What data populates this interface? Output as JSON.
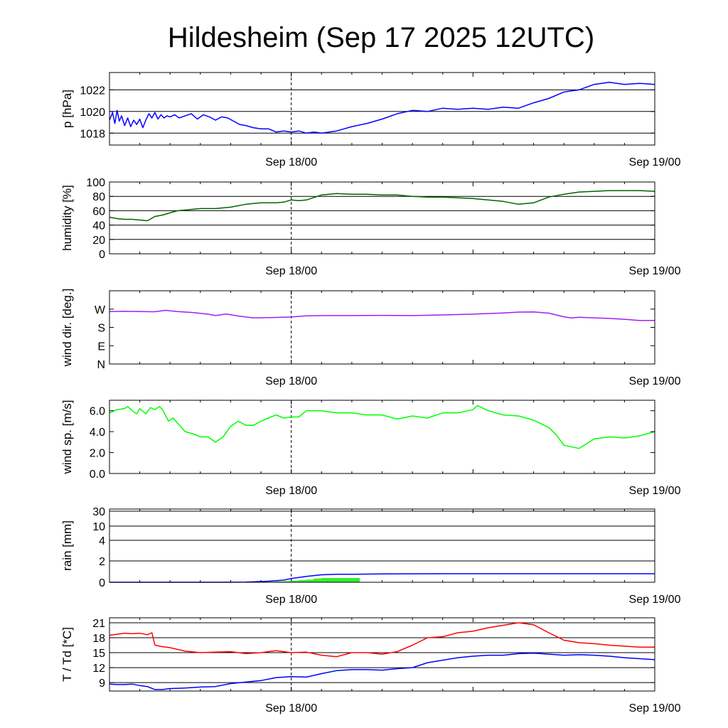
{
  "title": "Hildesheim (Sep 17 2025 12UTC)",
  "colors": {
    "pressure": "#0000ff",
    "humidity": "#006400",
    "wind_dir": "#a020f0",
    "wind_speed": "#00ff00",
    "rain_bar": "#33ee33",
    "rain_line": "#0000ff",
    "temperature": "#ff0000",
    "dewpoint": "#0000ff"
  },
  "chart_data": [
    {
      "type": "line",
      "ylabel": "p [hPa]",
      "x_ticks": [
        {
          "x": 12,
          "label": "Sep 18/00"
        },
        {
          "x": 36,
          "label": "Sep 19/00"
        }
      ],
      "x_range": [
        0,
        36
      ],
      "ylim": [
        1016.9,
        1023.6
      ],
      "y_ticks": [
        1018,
        1020,
        1022
      ],
      "gridlines": [
        1018,
        1020,
        1022
      ],
      "series": [
        {
          "name": "",
          "color_key": "pressure",
          "x": [
            0,
            0.2,
            0.35,
            0.5,
            0.65,
            0.8,
            1.0,
            1.2,
            1.4,
            1.6,
            1.8,
            2.0,
            2.2,
            2.4,
            2.6,
            2.8,
            3.0,
            3.2,
            3.4,
            3.6,
            3.8,
            4.0,
            4.3,
            4.6,
            5.0,
            5.4,
            5.8,
            6.2,
            6.6,
            7.0,
            7.4,
            7.8,
            8.2,
            8.6,
            9.0,
            9.5,
            10.0,
            10.5,
            11.0,
            11.5,
            12.0,
            12.5,
            13.0,
            13.5,
            14.0,
            15.0,
            16.0,
            17.0,
            18.0,
            19.0,
            20.0,
            21.0,
            22.0,
            23.0,
            24.0,
            25.0,
            26.0,
            27.0,
            28.0,
            29.0,
            30.0,
            31.0,
            32.0,
            33.0,
            34.0,
            35.0,
            36.0
          ],
          "values": [
            1019.2,
            1019.9,
            1018.9,
            1020.1,
            1019.1,
            1019.6,
            1018.7,
            1019.4,
            1018.6,
            1019.2,
            1018.8,
            1019.3,
            1018.5,
            1019.2,
            1019.8,
            1019.4,
            1019.9,
            1019.3,
            1019.7,
            1019.4,
            1019.6,
            1019.5,
            1019.7,
            1019.4,
            1019.6,
            1019.8,
            1019.3,
            1019.7,
            1019.5,
            1019.2,
            1019.5,
            1019.4,
            1019.1,
            1018.8,
            1018.7,
            1018.5,
            1018.4,
            1018.4,
            1018.1,
            1018.2,
            1018.1,
            1018.2,
            1018.0,
            1018.1,
            1018.0,
            1018.2,
            1018.6,
            1018.9,
            1019.3,
            1019.8,
            1020.1,
            1020.0,
            1020.3,
            1020.2,
            1020.3,
            1020.2,
            1020.4,
            1020.3,
            1020.8,
            1021.2,
            1021.8,
            1022.0,
            1022.5,
            1022.7,
            1022.5,
            1022.6,
            1022.5
          ]
        }
      ]
    },
    {
      "type": "line",
      "ylabel": "humidity [%]",
      "x_ticks": [
        {
          "x": 12,
          "label": "Sep 18/00"
        },
        {
          "x": 36,
          "label": "Sep 19/00"
        }
      ],
      "x_range": [
        0,
        36
      ],
      "ylim": [
        0,
        100
      ],
      "y_ticks": [
        0,
        20,
        40,
        60,
        80,
        100
      ],
      "gridlines": [
        20,
        40,
        60,
        80
      ],
      "series": [
        {
          "name": "",
          "color_key": "humidity",
          "x": [
            0,
            0.5,
            1.0,
            1.5,
            2.0,
            2.5,
            3.0,
            3.5,
            4.0,
            4.5,
            5.0,
            6.0,
            7.0,
            8.0,
            9.0,
            10.0,
            11.0,
            11.5,
            12.0,
            12.5,
            13.0,
            14.0,
            15.0,
            16.0,
            17.0,
            18.0,
            19.0,
            20.0,
            21.0,
            22.0,
            23.0,
            24.0,
            25.0,
            26.0,
            27.0,
            28.0,
            29.0,
            30.0,
            31.0,
            32.0,
            33.0,
            34.0,
            35.0,
            36.0
          ],
          "values": [
            51,
            49,
            48,
            48,
            47,
            46,
            52,
            54,
            57,
            60,
            61,
            63,
            63,
            65,
            69,
            71,
            71,
            72,
            75,
            74,
            75,
            82,
            84,
            83,
            83,
            82,
            82,
            80,
            79,
            79,
            78,
            77,
            75,
            73,
            69,
            71,
            79,
            83,
            86,
            87,
            88,
            88,
            88,
            87
          ]
        }
      ]
    },
    {
      "type": "line",
      "ylabel": "wind dir. [deg.]",
      "x_ticks": [
        {
          "x": 12,
          "label": "Sep 18/00"
        },
        {
          "x": 36,
          "label": "Sep 19/00"
        }
      ],
      "x_range": [
        0,
        36
      ],
      "ylim": [
        0,
        360
      ],
      "y_ticks": [
        {
          "value": 0,
          "label": "N"
        },
        {
          "value": 90,
          "label": "E"
        },
        {
          "value": 180,
          "label": "S"
        },
        {
          "value": 270,
          "label": "W"
        }
      ],
      "series": [
        {
          "name": "",
          "color_key": "wind_dir",
          "x": [
            0,
            1.0,
            2.0,
            3.0,
            3.7,
            4.5,
            5.5,
            6.5,
            7.0,
            7.7,
            8.5,
            9.5,
            10.5,
            12.0,
            13.0,
            14.0,
            16.0,
            18.0,
            20.0,
            22.0,
            24.0,
            25.0,
            26.0,
            27.0,
            28.0,
            29.0,
            30.0,
            30.5,
            31.0,
            32.0,
            33.0,
            34.0,
            35.0,
            36.0
          ],
          "values": [
            258,
            259,
            258,
            257,
            264,
            258,
            253,
            245,
            238,
            246,
            236,
            227,
            228,
            231,
            237,
            238,
            238,
            239,
            238,
            241,
            245,
            248,
            251,
            255,
            256,
            250,
            232,
            226,
            230,
            227,
            224,
            220,
            214,
            214
          ]
        }
      ]
    },
    {
      "type": "line",
      "ylabel": "wind sp. [m/s]",
      "x_ticks": [
        {
          "x": 12,
          "label": "Sep 18/00"
        },
        {
          "x": 36,
          "label": "Sep 19/00"
        }
      ],
      "x_range": [
        0,
        36
      ],
      "ylim": [
        0,
        7
      ],
      "y_ticks": [
        0,
        2,
        4,
        6
      ],
      "y_tick_labels": [
        "0.0",
        "2.0",
        "4.0",
        "6.0"
      ],
      "series": [
        {
          "name": "",
          "color_key": "wind_speed",
          "x": [
            0,
            0.5,
            1.0,
            1.2,
            1.5,
            1.8,
            2.0,
            2.4,
            2.7,
            3.0,
            3.3,
            3.5,
            3.9,
            4.2,
            4.5,
            5.0,
            5.5,
            6.0,
            6.5,
            7.0,
            7.5,
            8.0,
            8.5,
            9.0,
            9.5,
            10.0,
            10.5,
            11.0,
            11.5,
            12.0,
            12.5,
            13.0,
            14.0,
            15.0,
            16.0,
            17.0,
            18.0,
            19.0,
            20.0,
            21.0,
            22.0,
            23.0,
            24.0,
            24.3,
            25.0,
            26.0,
            27.0,
            28.0,
            29.0,
            29.5,
            30.0,
            31.0,
            32.0,
            33.0,
            34.0,
            35.0,
            36.0
          ],
          "values": [
            5.8,
            6.1,
            6.2,
            6.4,
            6.0,
            5.7,
            6.2,
            5.7,
            6.3,
            6.1,
            6.4,
            6.1,
            5.0,
            5.3,
            4.8,
            4.0,
            3.8,
            3.5,
            3.5,
            3.0,
            3.5,
            4.5,
            5.0,
            4.6,
            4.6,
            5.0,
            5.3,
            5.6,
            5.3,
            5.4,
            5.4,
            6.0,
            6.0,
            5.8,
            5.8,
            5.6,
            5.6,
            5.2,
            5.5,
            5.3,
            5.8,
            5.8,
            6.1,
            6.5,
            6.0,
            5.6,
            5.5,
            5.1,
            4.4,
            3.7,
            2.7,
            2.4,
            3.3,
            3.5,
            3.4,
            3.6,
            4.0
          ]
        }
      ]
    },
    {
      "type": "bar+line",
      "ylabel": "rain [mm]",
      "x_ticks": [
        {
          "x": 12,
          "label": "Sep 18/00"
        },
        {
          "x": 36,
          "label": "Sep 19/00"
        }
      ],
      "x_range": [
        0,
        36
      ],
      "y_ticks": [
        0,
        2,
        4,
        10,
        30
      ],
      "gridlines": [
        2,
        4,
        10,
        30
      ],
      "y_scale": "custom-nonlinear",
      "bars": {
        "color_key": "rain_bar",
        "x": [
          10.5,
          11.0,
          11.5,
          12.0,
          12.5,
          13.0,
          13.5,
          14.0,
          14.5,
          15.0,
          15.5,
          16.0
        ],
        "values": [
          0.05,
          0.08,
          0.1,
          0.15,
          0.2,
          0.25,
          0.35,
          0.4,
          0.4,
          0.4,
          0.4,
          0.4
        ]
      },
      "series": [
        {
          "name": "",
          "color_key": "rain_line",
          "x": [
            0,
            7.0,
            9.0,
            10.5,
            11.5,
            12.0,
            13.0,
            14.0,
            15.0,
            16.0,
            18.0,
            22.0,
            26.0,
            30.0,
            36.0
          ],
          "values": [
            0,
            0,
            0.02,
            0.1,
            0.2,
            0.35,
            0.55,
            0.7,
            0.75,
            0.75,
            0.78,
            0.8,
            0.8,
            0.8,
            0.8
          ]
        }
      ]
    },
    {
      "type": "line",
      "ylabel": "T / Td [*C]",
      "x_ticks": [
        {
          "x": 12,
          "label": "Sep 18/00"
        },
        {
          "x": 36,
          "label": "Sep 19/00"
        }
      ],
      "x_range": [
        0,
        36
      ],
      "ylim": [
        7.3,
        22.0
      ],
      "y_ticks": [
        9,
        12,
        15,
        18,
        21
      ],
      "gridlines": [
        9,
        12,
        15,
        18,
        21
      ],
      "series": [
        {
          "name": "",
          "color_key": "temperature",
          "x": [
            0,
            0.5,
            1.0,
            1.5,
            2.0,
            2.5,
            2.8,
            3.0,
            3.5,
            4.0,
            5.0,
            6.0,
            7.0,
            8.0,
            9.0,
            10.0,
            11.0,
            12.0,
            13.0,
            14.0,
            15.0,
            16.0,
            17.0,
            18.0,
            19.0,
            20.0,
            21.0,
            22.0,
            23.0,
            24.0,
            25.0,
            26.0,
            27.0,
            28.0,
            29.0,
            30.0,
            31.0,
            32.0,
            33.0,
            34.0,
            35.0,
            36.0
          ],
          "values": [
            18.5,
            18.7,
            18.9,
            18.8,
            18.9,
            18.6,
            19.0,
            16.5,
            16.2,
            16.0,
            15.3,
            15.0,
            15.1,
            15.2,
            14.8,
            15.0,
            15.4,
            15.0,
            15.1,
            14.5,
            14.2,
            15.0,
            15.0,
            14.7,
            15.2,
            16.5,
            18.0,
            18.2,
            19.0,
            19.3,
            20.0,
            20.5,
            21.0,
            20.6,
            19.0,
            17.5,
            17.0,
            16.8,
            16.5,
            16.3,
            16.1,
            16.1
          ]
        },
        {
          "name": "",
          "color_key": "dewpoint",
          "x": [
            0,
            0.5,
            1.0,
            1.5,
            2.0,
            2.5,
            3.0,
            3.5,
            4.0,
            5.0,
            6.0,
            7.0,
            8.0,
            9.0,
            10.0,
            11.0,
            12.0,
            13.0,
            14.0,
            15.0,
            16.0,
            17.0,
            18.0,
            19.0,
            20.0,
            21.0,
            22.0,
            23.0,
            24.0,
            25.0,
            26.0,
            27.0,
            28.0,
            29.0,
            30.0,
            31.0,
            32.0,
            33.0,
            34.0,
            35.0,
            36.0
          ],
          "values": [
            8.7,
            8.6,
            8.6,
            8.7,
            8.4,
            8.2,
            7.6,
            7.6,
            7.8,
            7.9,
            8.1,
            8.2,
            8.8,
            9.1,
            9.4,
            10.0,
            10.2,
            10.1,
            10.8,
            11.4,
            11.6,
            11.6,
            11.5,
            11.8,
            12.0,
            13.0,
            13.5,
            14.0,
            14.3,
            14.5,
            14.5,
            14.8,
            14.9,
            14.7,
            14.5,
            14.6,
            14.5,
            14.3,
            14.0,
            13.8,
            13.6
          ]
        }
      ]
    }
  ]
}
